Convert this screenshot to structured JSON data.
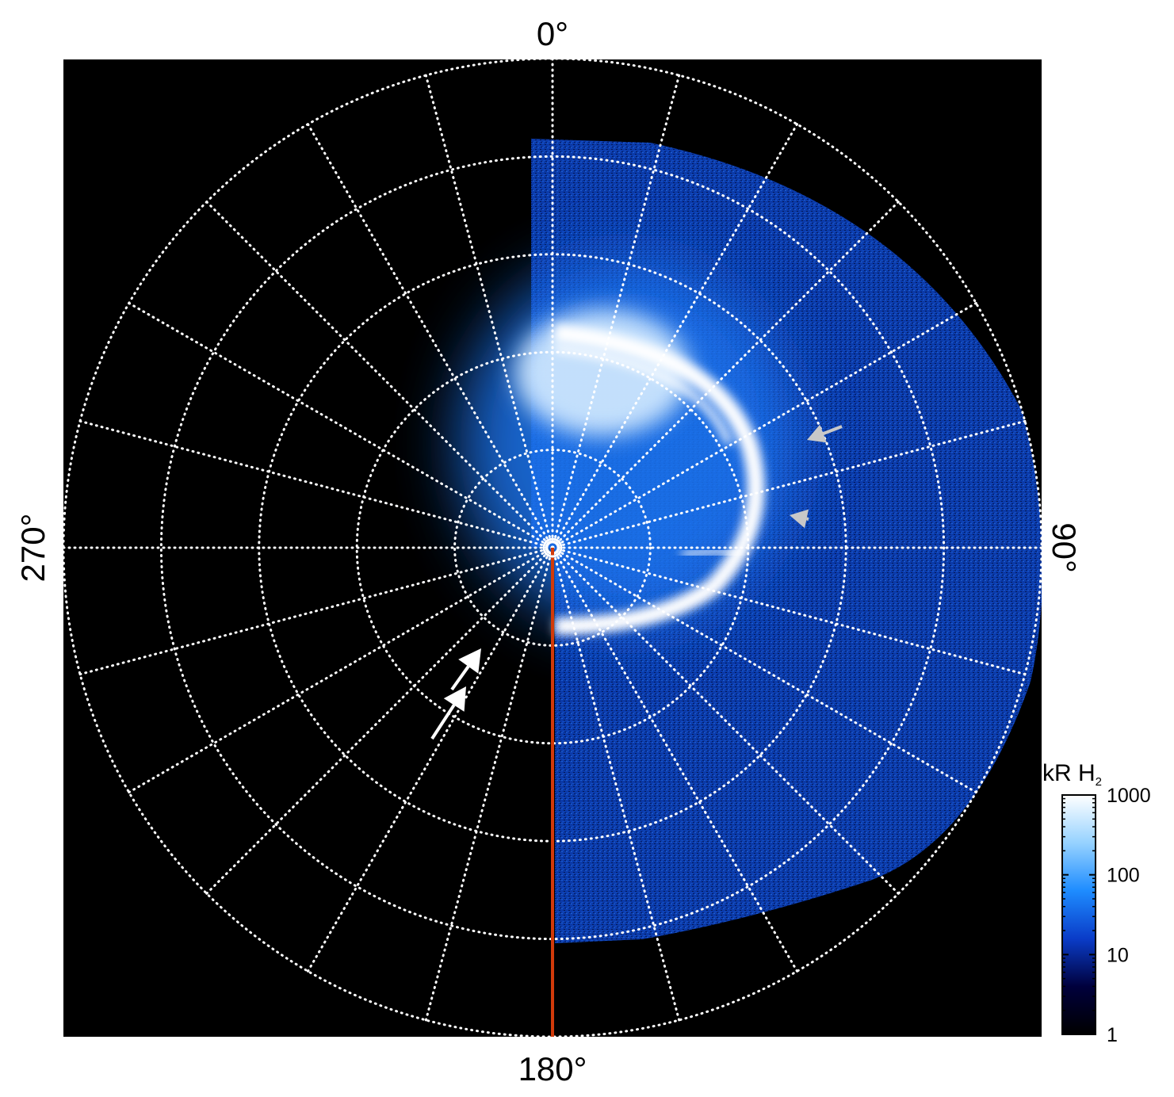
{
  "chart_data": {
    "type": "heatmap",
    "projection": "polar",
    "angle_labels": [
      {
        "text": "0°",
        "angle": 0
      },
      {
        "text": "90°",
        "angle": 90
      },
      {
        "text": "180°",
        "angle": 180
      },
      {
        "text": "270°",
        "angle": 270
      }
    ],
    "meridian_step_deg": 15,
    "ring_count": 5,
    "grid": "dotted-white",
    "background": "#000000",
    "colorbar": {
      "title": "kR H",
      "title_subscript": "2",
      "scale": "log",
      "range": [
        1,
        1000
      ],
      "ticks": [
        {
          "value": 1,
          "label": "1"
        },
        {
          "value": 10,
          "label": "10"
        },
        {
          "value": 100,
          "label": "100"
        },
        {
          "value": 1000,
          "label": "1000"
        }
      ],
      "colors": [
        "#000000",
        "#00003c",
        "#0a3cc8",
        "#1e8cff",
        "#96d2ff",
        "#ffffff"
      ]
    },
    "marker_line": {
      "angle": 180,
      "color": "#d23a0a"
    },
    "annotations": [
      {
        "kind": "arrow",
        "color": "#c8c8c8",
        "angle": 70
      },
      {
        "kind": "arrow",
        "color": "#c8c8c8",
        "angle": 76
      },
      {
        "kind": "arrow",
        "color": "#ffffff",
        "angle": 210
      },
      {
        "kind": "arrow",
        "color": "#ffffff",
        "angle": 214
      }
    ],
    "emission": {
      "description_hidden": true,
      "visible_half": "dawn-right",
      "main_oval_color": "#ffffff"
    }
  }
}
